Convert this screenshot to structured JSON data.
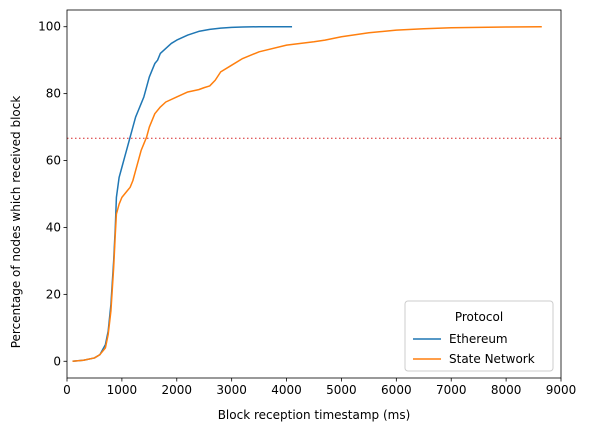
{
  "chart_data": {
    "type": "line",
    "xlabel": "Block reception timestamp (ms)",
    "ylabel": "Percentage of nodes which received block",
    "xlim": [
      0,
      9000
    ],
    "ylim": [
      -5,
      105
    ],
    "xticks": [
      0,
      1000,
      2000,
      3000,
      4000,
      5000,
      6000,
      7000,
      8000,
      9000
    ],
    "yticks": [
      0,
      20,
      40,
      60,
      80,
      100
    ],
    "xtick_labels": [
      "0",
      "1000",
      "2000",
      "3000",
      "4000",
      "5000",
      "6000",
      "7000",
      "8000",
      "9000"
    ],
    "ytick_labels": [
      "0",
      "20",
      "40",
      "60",
      "80",
      "100"
    ],
    "grid": false,
    "legend": {
      "title": "Protocol",
      "placement": "bottom-right"
    },
    "reference_line": {
      "y": 66.67,
      "style": "dotted",
      "color": "#d62728"
    },
    "series": [
      {
        "name": "Ethereum",
        "color": "#1f77b4",
        "x": [
          100,
          300,
          500,
          600,
          700,
          750,
          800,
          850,
          880,
          900,
          950,
          1000,
          1050,
          1100,
          1150,
          1200,
          1250,
          1300,
          1350,
          1400,
          1450,
          1500,
          1550,
          1600,
          1650,
          1700,
          1800,
          1900,
          2000,
          2200,
          2400,
          2600,
          2800,
          3000,
          3200,
          3500,
          4100
        ],
        "y": [
          0,
          0.3,
          1,
          2,
          5,
          9,
          17,
          30,
          40,
          49,
          55,
          58,
          61,
          64,
          67,
          70,
          73,
          75,
          77,
          79,
          82,
          85,
          87,
          89,
          90,
          92,
          93.5,
          95,
          96,
          97.5,
          98.6,
          99.2,
          99.6,
          99.8,
          99.9,
          100,
          100
        ]
      },
      {
        "name": "State Network",
        "color": "#ff7f0e",
        "x": [
          100,
          300,
          500,
          600,
          700,
          750,
          800,
          850,
          880,
          900,
          950,
          1000,
          1050,
          1100,
          1150,
          1200,
          1250,
          1300,
          1350,
          1400,
          1450,
          1500,
          1600,
          1700,
          1800,
          2000,
          2200,
          2400,
          2500,
          2600,
          2700,
          2800,
          3000,
          3200,
          3500,
          4000,
          4500,
          4700,
          5000,
          5500,
          6000,
          6500,
          7000,
          8000,
          8650
        ],
        "y": [
          0,
          0.3,
          1,
          2,
          4,
          8,
          15,
          28,
          38,
          44,
          47,
          49,
          50,
          51,
          52,
          54,
          57,
          60,
          63,
          65,
          67,
          70,
          74,
          76,
          77.5,
          79,
          80.5,
          81.2,
          81.8,
          82.3,
          84,
          86.5,
          88.5,
          90.5,
          92.5,
          94.5,
          95.5,
          96,
          97,
          98.2,
          99,
          99.4,
          99.7,
          99.9,
          100
        ]
      }
    ]
  }
}
